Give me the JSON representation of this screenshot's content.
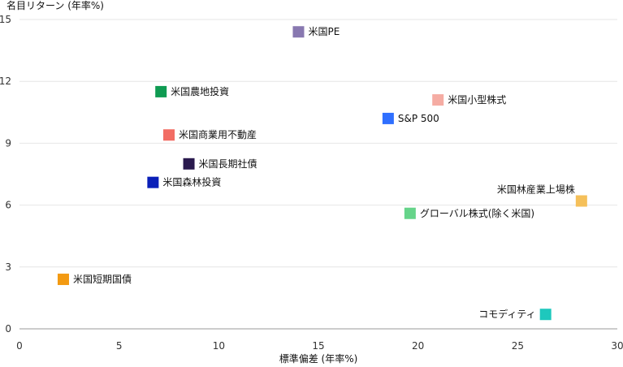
{
  "chart_data": {
    "type": "scatter",
    "title": "",
    "xlabel": "標準偏差 (年率%)",
    "ylabel": "名目リターン (年率%)",
    "xlim": [
      0,
      30
    ],
    "ylim": [
      0,
      15
    ],
    "xticks": [
      0,
      5,
      10,
      15,
      20,
      25,
      30
    ],
    "yticks": [
      0,
      3,
      6,
      9,
      12,
      15
    ],
    "grid": "horizontal",
    "points": [
      {
        "label": "米国PE",
        "x": 14.0,
        "y": 14.4,
        "color": "#8878b0",
        "label_pos": "right"
      },
      {
        "label": "米国農地投資",
        "x": 7.1,
        "y": 11.5,
        "color": "#0f9b52",
        "label_pos": "right"
      },
      {
        "label": "米国小型株式",
        "x": 21.0,
        "y": 11.1,
        "color": "#f5aca3",
        "label_pos": "right"
      },
      {
        "label": "S&P 500",
        "x": 18.5,
        "y": 10.2,
        "color": "#2f6fff",
        "label_pos": "right"
      },
      {
        "label": "米国商業用不動産",
        "x": 7.5,
        "y": 9.4,
        "color": "#f26d64",
        "label_pos": "right"
      },
      {
        "label": "米国長期社債",
        "x": 8.5,
        "y": 8.0,
        "color": "#2a1a4e",
        "label_pos": "right"
      },
      {
        "label": "米国森林投資",
        "x": 6.7,
        "y": 7.1,
        "color": "#0a1fb8",
        "label_pos": "right"
      },
      {
        "label": "米国林産業上場株",
        "x": 28.2,
        "y": 6.2,
        "color": "#f5c05a",
        "label_pos": "top-left"
      },
      {
        "label": "グローバル株式(除く米国)",
        "x": 19.6,
        "y": 5.6,
        "color": "#66d48a",
        "label_pos": "right"
      },
      {
        "label": "米国短期国債",
        "x": 2.2,
        "y": 2.4,
        "color": "#f39a12",
        "label_pos": "right"
      },
      {
        "label": "コモディティ",
        "x": 26.4,
        "y": 0.7,
        "color": "#1ec8bd",
        "label_pos": "left"
      }
    ]
  }
}
